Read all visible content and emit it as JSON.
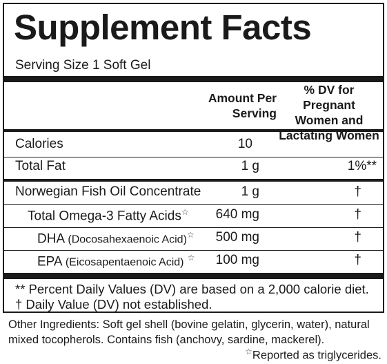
{
  "label": {
    "title": "Supplement Facts",
    "serving_size": "Serving Size 1 Soft Gel",
    "header": {
      "amount_line1": "Amount Per",
      "amount_line2": "Serving",
      "dv_line1": "% DV for Pregnant",
      "dv_line2": "Women and",
      "dv_line3": "Lactating Women"
    },
    "rows": [
      {
        "name": "Calories",
        "amount": "10",
        "dv": ""
      },
      {
        "name": "Total Fat",
        "amount": "1 g",
        "dv": "1%**"
      },
      {
        "name": "Norwegian Fish Oil Concentrate",
        "amount": "1 g",
        "dv": "†"
      },
      {
        "name": "Total Omega-3 Fatty Acids",
        "amount": "640 mg",
        "dv": "†"
      },
      {
        "name": "DHA",
        "detail": "(Docosahexaenoic Acid)",
        "amount": "500 mg",
        "dv": "†"
      },
      {
        "name": "EPA",
        "detail": "(Eicosapentaenoic Acid)",
        "amount": "100 mg",
        "dv": "†"
      }
    ],
    "star_symbol": "☆",
    "footnotes": {
      "percent_dv": "** Percent Daily Values (DV) are based on a 2,000 calorie diet.",
      "not_established": "† Daily Value (DV) not established."
    }
  },
  "other": {
    "ingredients": "Other Ingredients:  Soft gel shell (bovine gelatin, glycerin, water), natural mixed tocopherols. Contains fish (anchovy, sardine, mackerel).",
    "reported_text": "Reported as triglycerides."
  }
}
